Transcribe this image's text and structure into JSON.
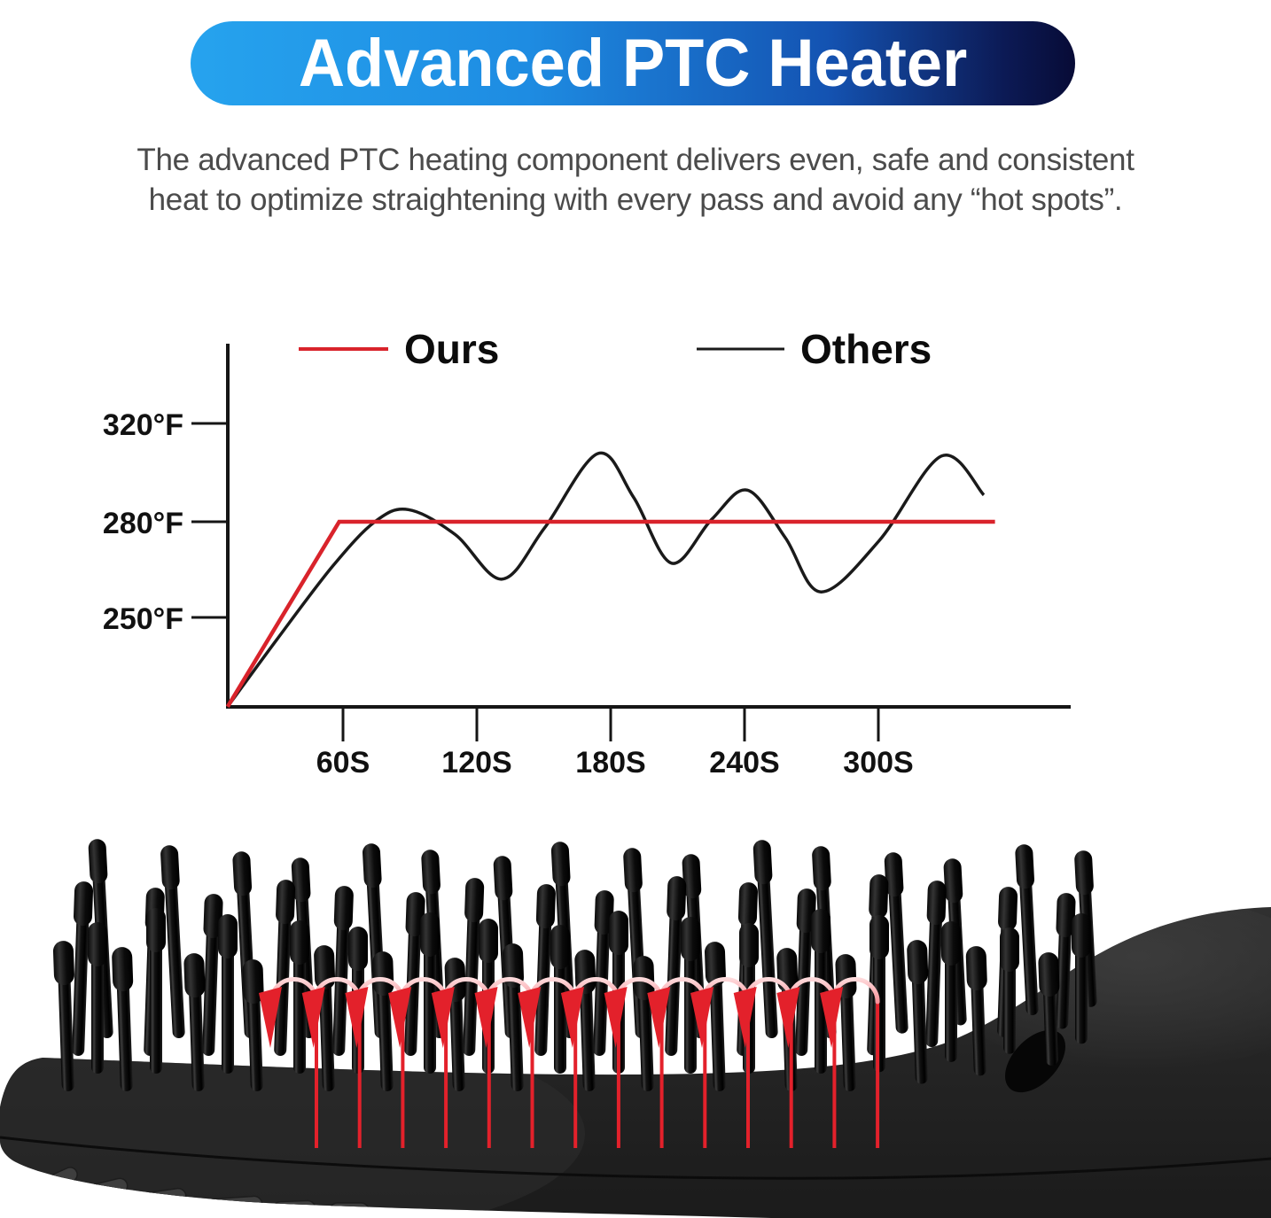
{
  "title": {
    "text": "Advanced PTC Heater"
  },
  "description": {
    "line1": "The advanced PTC heating component delivers even, safe and consistent",
    "line2": "heat to optimize straightening with every pass and avoid any “hot spots”."
  },
  "chart_data": {
    "type": "line",
    "title": "",
    "xlabel": "",
    "ylabel": "",
    "x_ticks": [
      "60S",
      "120S",
      "180S",
      "240S",
      "300S"
    ],
    "y_ticks": [
      "320°F",
      "280°F",
      "250°F"
    ],
    "x_unit": "seconds",
    "y_unit": "°F",
    "xlim": [
      0,
      360
    ],
    "ylim": [
      220,
      330
    ],
    "legend_position": "top",
    "grid": false,
    "series": [
      {
        "name": "Ours",
        "color": "#d9232b",
        "points": [
          [
            8,
            222
          ],
          [
            58,
            280
          ],
          [
            352,
            280
          ]
        ]
      },
      {
        "name": "Others",
        "color": "#1a1a1a",
        "points": [
          [
            8,
            222
          ],
          [
            30,
            243
          ],
          [
            55,
            266
          ],
          [
            74,
            280
          ],
          [
            89,
            285
          ],
          [
            110,
            276
          ],
          [
            131,
            262
          ],
          [
            150,
            278
          ],
          [
            174,
            308
          ],
          [
            190,
            290
          ],
          [
            207,
            267
          ],
          [
            225,
            281
          ],
          [
            241,
            293
          ],
          [
            258,
            275
          ],
          [
            274,
            258
          ],
          [
            300,
            274
          ],
          [
            328,
            307
          ],
          [
            347,
            291
          ]
        ]
      }
    ]
  },
  "photo": {
    "subject": "black heated straightening brush head with bullet-tip bristles",
    "body_color": "#242424",
    "heat_arrows": {
      "count": 14,
      "color": "#e3212b"
    }
  }
}
